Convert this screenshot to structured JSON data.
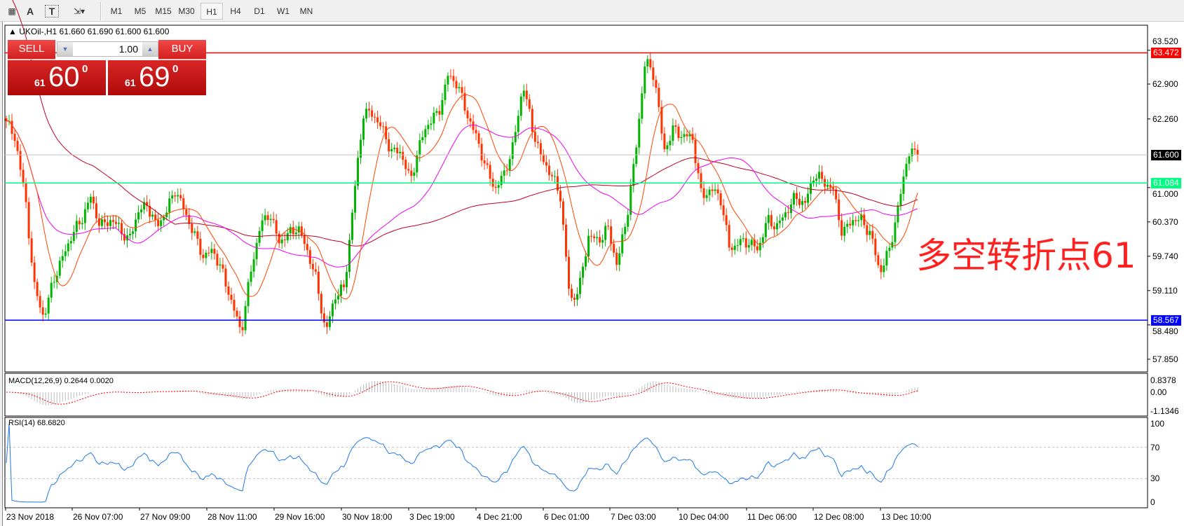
{
  "toolbar": {
    "tools": [
      {
        "name": "grid-icon",
        "glyph": "▦"
      },
      {
        "name": "text-icon",
        "glyph": "A"
      },
      {
        "name": "text-label-icon",
        "glyph": "T"
      },
      {
        "name": "shapes-icon",
        "glyph": "⇲▾"
      }
    ],
    "timeframes": [
      "M1",
      "M5",
      "M15",
      "M30",
      "H1",
      "H4",
      "D1",
      "W1",
      "MN"
    ],
    "active_timeframe": "H1"
  },
  "chart": {
    "symbol_title": "UKOil-,H1  61.660 61.690 61.600 61.600",
    "trade": {
      "sell_label": "SELL",
      "buy_label": "BUY",
      "lot": "1.00",
      "sell_big": "61",
      "sell_main": "60",
      "sell_sup": "0",
      "buy_big": "61",
      "buy_main": "69",
      "buy_sup": "0"
    },
    "annotation": "多空转折点61",
    "hlines": [
      {
        "price": 63.472,
        "label": "63.472",
        "color": "#ff0000"
      },
      {
        "price": 61.084,
        "label": "61.084",
        "color": "#00ff80"
      },
      {
        "price": 58.567,
        "label": "58.567",
        "color": "#0000ff"
      },
      {
        "price": 61.6,
        "label": "61.600",
        "color": "#000000"
      }
    ],
    "colors": {
      "bull": "#00b400",
      "bear": "#ff3300",
      "ma_fast": "#ff4500",
      "ma_mid": "#ee00ee",
      "ma_slow": "#c00020",
      "rsi": "#1e78e6",
      "macd_signal": "#ff0000"
    }
  },
  "chart_data": {
    "type": "candlestick",
    "price_ticks": [
      "63.520",
      "62.900",
      "62.260",
      "61.000",
      "60.370",
      "59.740",
      "59.110",
      "58.480",
      "57.850"
    ],
    "ylim": [
      57.6,
      63.9
    ],
    "time_labels": [
      "23 Nov 2018",
      "26 Nov 07:00",
      "27 Nov 09:00",
      "28 Nov 11:00",
      "29 Nov 16:00",
      "30 Nov 18:00",
      "3 Dec 19:00",
      "4 Dec 21:00",
      "6 Dec 01:00",
      "7 Dec 03:00",
      "10 Dec 04:00",
      "11 Dec 06:00",
      "12 Dec 08:00",
      "13 Dec 10:00"
    ],
    "price_path": [
      62.22,
      61.87,
      60.83,
      59.16,
      58.61,
      59.3,
      59.72,
      60.14,
      60.41,
      60.83,
      60.28,
      60.41,
      60.28,
      60.0,
      60.55,
      60.69,
      60.28,
      60.55,
      60.97,
      60.55,
      60.14,
      59.72,
      59.86,
      59.44,
      58.89,
      58.33,
      59.44,
      60.28,
      60.55,
      60.0,
      60.14,
      60.28,
      59.86,
      59.3,
      58.33,
      59.02,
      59.16,
      60.83,
      62.36,
      62.36,
      62.08,
      61.66,
      61.66,
      61.11,
      61.8,
      62.22,
      62.36,
      63.05,
      62.91,
      62.36,
      61.94,
      61.39,
      60.97,
      61.25,
      61.8,
      62.91,
      62.08,
      61.52,
      61.25,
      60.83,
      58.89,
      59.16,
      60.14,
      60.0,
      60.28,
      59.58,
      60.41,
      61.66,
      63.33,
      63.05,
      61.66,
      62.08,
      61.94,
      61.94,
      60.83,
      60.97,
      60.83,
      59.86,
      60.0,
      60.0,
      59.86,
      60.41,
      60.28,
      60.55,
      60.83,
      60.69,
      61.25,
      61.11,
      60.97,
      60.14,
      60.41,
      60.41,
      60.14,
      59.44,
      59.86,
      60.69,
      61.66,
      61.6
    ],
    "macd": {
      "label": "MACD(12,26,9) 0.2644 0.0020",
      "ticks": [
        "0.8378",
        "0.00",
        "-1.1346"
      ]
    },
    "rsi": {
      "label": "RSI(14) 68.6820",
      "ticks": [
        "100",
        "70",
        "30",
        "0"
      ],
      "levels": [
        70,
        30
      ]
    }
  }
}
